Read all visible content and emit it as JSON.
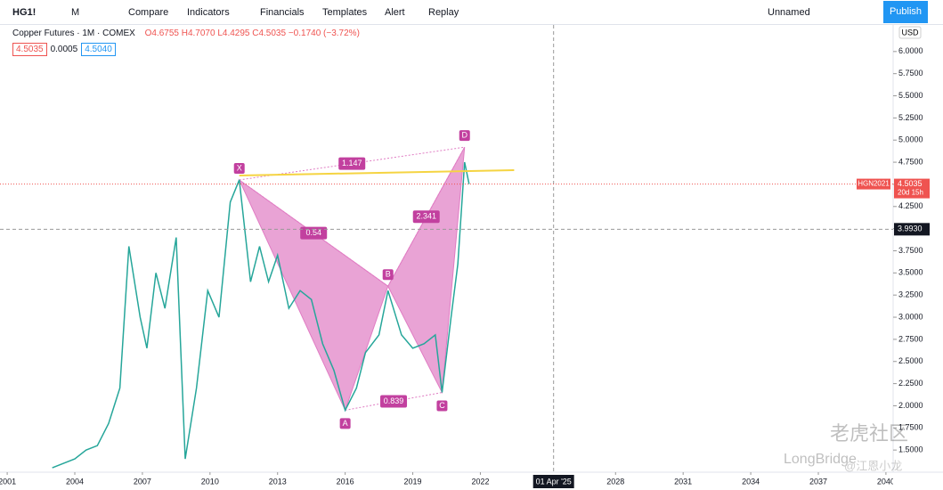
{
  "toolbar": {
    "symbol": "HG1!",
    "interval": "M",
    "buttons": [
      "Compare",
      "Indicators",
      "Financials",
      "Templates",
      "Alert",
      "Replay"
    ],
    "layout_name": "Unnamed",
    "publish": "Publish"
  },
  "legend": {
    "title": "Copper Futures · 1M · COMEX",
    "ohlc": "O4.6755 H4.7070 L4.4295 C4.5035 −0.1740 (−3.72%)",
    "bid": "4.5035",
    "spread": "0.0005",
    "ask": "4.5040"
  },
  "currency": "USD",
  "watermark": [
    "老虎社区",
    "LongBridge",
    "@江恩小龙"
  ],
  "chart_data": {
    "type": "line",
    "color": "#26a69a",
    "x": [
      2003.0,
      2003.5,
      2004.0,
      2004.5,
      2005.0,
      2005.5,
      2006.0,
      2006.4,
      2006.9,
      2007.2,
      2007.6,
      2008.0,
      2008.5,
      2008.9,
      2009.4,
      2009.9,
      2010.4,
      2010.9,
      2011.3,
      2011.8,
      2012.2,
      2012.6,
      2013.0,
      2013.5,
      2014.0,
      2014.5,
      2015.0,
      2015.5,
      2016.0,
      2016.5,
      2016.9,
      2017.5,
      2017.9,
      2018.5,
      2019.0,
      2019.5,
      2020.0,
      2020.3,
      2020.7,
      2021.0,
      2021.3,
      2021.5
    ],
    "values": [
      1.3,
      1.35,
      1.4,
      1.5,
      1.55,
      1.8,
      2.2,
      3.8,
      3.0,
      2.65,
      3.5,
      3.1,
      3.9,
      1.4,
      2.2,
      3.3,
      3.0,
      4.3,
      4.55,
      3.4,
      3.8,
      3.4,
      3.7,
      3.1,
      3.3,
      3.2,
      2.7,
      2.4,
      1.95,
      2.2,
      2.6,
      2.8,
      3.3,
      2.8,
      2.65,
      2.7,
      2.8,
      2.15,
      3.0,
      3.6,
      4.75,
      4.5035
    ],
    "xlim": [
      2000.68,
      2040.32
    ],
    "xticks": [
      2001,
      2004,
      2007,
      2010,
      2013,
      2016,
      2019,
      2022,
      2028,
      2031,
      2034,
      2037,
      2040
    ],
    "ylim": [
      1.25,
      6.3
    ],
    "yticks": [
      {
        "value": 1.5,
        "label": "1.5000"
      },
      {
        "value": 1.75,
        "label": "1.7500"
      },
      {
        "value": 2,
        "label": "2.0000"
      },
      {
        "value": 2.25,
        "label": "2.2500"
      },
      {
        "value": 2.5,
        "label": "2.5000"
      },
      {
        "value": 2.75,
        "label": "2.7500"
      },
      {
        "value": 3,
        "label": "3.0000"
      },
      {
        "value": 3.25,
        "label": "3.2500"
      },
      {
        "value": 3.5,
        "label": "3.5000"
      },
      {
        "value": 3.75,
        "label": "3.7500"
      },
      {
        "value": 4,
        "label": "4.0000"
      },
      {
        "value": 4.25,
        "label": "4.2500"
      },
      {
        "value": 4.5,
        "label": "4.5000"
      },
      {
        "value": 4.75,
        "label": "4.7500"
      },
      {
        "value": 5,
        "label": "5.0000"
      },
      {
        "value": 5.25,
        "label": "5.2500"
      },
      {
        "value": 5.5,
        "label": "5.5000"
      },
      {
        "value": 5.75,
        "label": "5.7500"
      },
      {
        "value": 6,
        "label": "6.0000"
      }
    ],
    "pattern": {
      "color": "#e07cc3",
      "points": [
        {
          "label": "X",
          "x": 2011.3,
          "y": 4.55
        },
        {
          "label": "A",
          "x": 2016.0,
          "y": 1.95
        },
        {
          "label": "B",
          "x": 2017.9,
          "y": 3.35
        },
        {
          "label": "C",
          "x": 2020.3,
          "y": 2.15
        },
        {
          "label": "D",
          "x": 2021.3,
          "y": 4.92
        }
      ],
      "ratios": [
        "0.54",
        "1.147",
        "2.341",
        "0.839"
      ]
    },
    "trendline": {
      "x": [
        2011.3,
        2023.5
      ],
      "y": [
        4.6,
        4.66
      ],
      "color": "#f5d442"
    },
    "last_price": {
      "label": "HGN2021",
      "value": 4.5035,
      "countdown": "20d 15h"
    },
    "crosshair": {
      "x": {
        "value": 2025.25,
        "label": "01 Apr '25"
      },
      "y": {
        "value": 3.993,
        "label": "3.9930"
      }
    }
  }
}
